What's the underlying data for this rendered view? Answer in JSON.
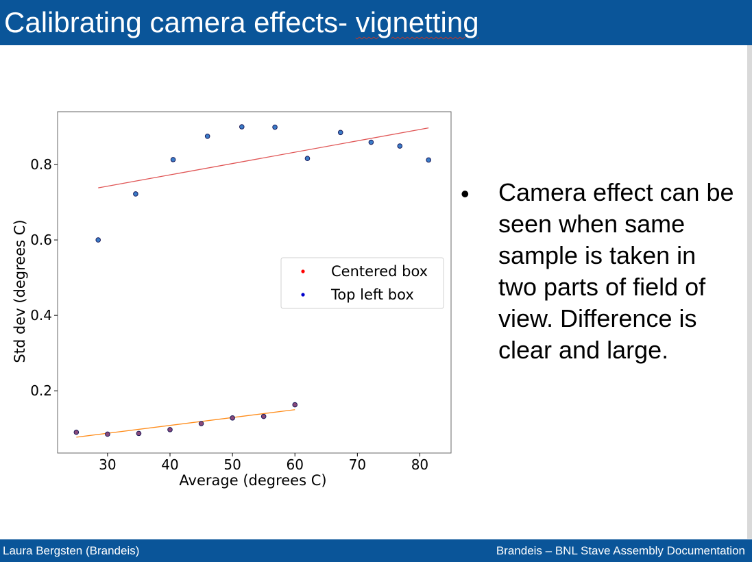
{
  "slide": {
    "title_main": "Calibrating camera effects- ",
    "title_flagged": "vignetting",
    "bullet": "Camera effect can be seen when same sample is taken in two parts of field of view. Difference is clear and large.",
    "footer_left": "Laura Bergsten (Brandeis)",
    "footer_right": "Brandeis – BNL Stave Assembly Documentation",
    "colors": {
      "header": "#0a5599",
      "footer": "#0a5599"
    }
  },
  "chart_data": {
    "type": "scatter",
    "xlabel": "Average (degrees C)",
    "ylabel": "Std dev (degrees C)",
    "xlim": [
      22,
      85
    ],
    "ylim": [
      0.035,
      0.94
    ],
    "xticks": [
      30,
      40,
      50,
      60,
      70,
      80
    ],
    "yticks": [
      0.2,
      0.4,
      0.6,
      0.8
    ],
    "grid": false,
    "legend_position": "center-right",
    "series": [
      {
        "name": "Centered box",
        "legend_color": "#ff0000",
        "marker_color": "#8a4a7a",
        "x": [
          25,
          30,
          35,
          40,
          45,
          50,
          55,
          60
        ],
        "y": [
          0.09,
          0.085,
          0.087,
          0.097,
          0.113,
          0.128,
          0.132,
          0.163
        ],
        "fit": {
          "color": "#ff8c1a",
          "x": [
            25,
            60
          ],
          "y": [
            0.077,
            0.15
          ]
        }
      },
      {
        "name": "Top left box",
        "legend_color": "#0000cc",
        "marker_color": "#3a7cc8",
        "x": [
          28.5,
          34.5,
          40.5,
          46,
          51.5,
          56.8,
          62,
          67.3,
          72.2,
          76.8,
          81.4
        ],
        "y": [
          0.6,
          0.722,
          0.813,
          0.875,
          0.9,
          0.899,
          0.816,
          0.885,
          0.859,
          0.849,
          0.812
        ],
        "fit": {
          "color": "#e05555",
          "x": [
            28.5,
            81.4
          ],
          "y": [
            0.738,
            0.897
          ]
        }
      }
    ]
  }
}
